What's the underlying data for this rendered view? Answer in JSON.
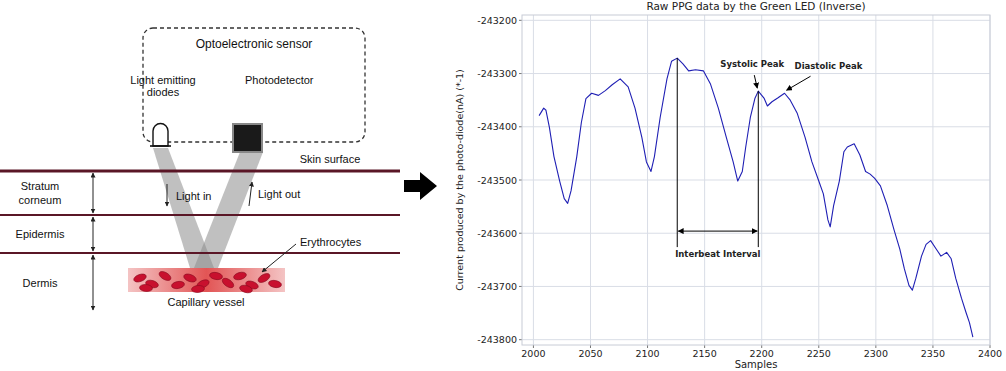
{
  "diagram": {
    "sensor": {
      "title": "Optoelectronic sensor",
      "emitter": [
        "Light emitting",
        "diodes"
      ],
      "detector": "Photodetector"
    },
    "skin_surface": "Skin surface",
    "layers": [
      {
        "lines": [
          "Stratum",
          "corneum"
        ]
      },
      {
        "lines": [
          "Epidermis"
        ]
      },
      {
        "lines": [
          "Dermis"
        ]
      }
    ],
    "light_in": "Light in",
    "light_out": "Light out",
    "cells": "Erythrocytes",
    "vessel": "Capillary vessel"
  },
  "chart_data": {
    "type": "line",
    "title": "Raw PPG data by the Green LED (Inverse)",
    "x_label": "Samples",
    "y_label": "Current produced by the photo-diode(nA) (*-1)",
    "xlim": [
      1990,
      2400
    ],
    "xticks": [
      2000,
      2050,
      2100,
      2150,
      2200,
      2250,
      2300,
      2350,
      2400
    ],
    "ylim": [
      -243810,
      -243190
    ],
    "yticks": [
      -243800,
      -243700,
      -243600,
      -243500,
      -243400,
      -243300,
      -243200
    ],
    "grid": true,
    "x": [
      2005,
      2009,
      2011,
      2014,
      2018,
      2023,
      2027,
      2030,
      2033,
      2038,
      2042,
      2046,
      2051,
      2057,
      2063,
      2069,
      2076,
      2083,
      2089,
      2095,
      2099,
      2103,
      2106,
      2111,
      2117,
      2121,
      2126,
      2131,
      2136,
      2142,
      2149,
      2155,
      2162,
      2169,
      2175,
      2179,
      2183,
      2186,
      2190,
      2194,
      2197,
      2202,
      2205,
      2209,
      2214,
      2220,
      2225,
      2231,
      2238,
      2244,
      2250,
      2254,
      2258,
      2260,
      2263,
      2268,
      2272,
      2275,
      2281,
      2286,
      2291,
      2295,
      2299,
      2304,
      2310,
      2316,
      2321,
      2325,
      2329,
      2332,
      2335,
      2340,
      2344,
      2348,
      2353,
      2357,
      2362,
      2366,
      2370,
      2375,
      2379,
      2382,
      2385
    ],
    "series": [
      {
        "color": "#1f1fb4",
        "values": [
          -243379,
          -243365,
          -243369,
          -243401,
          -243456,
          -243502,
          -243535,
          -243544,
          -243520,
          -243456,
          -243392,
          -243347,
          -243337,
          -243341,
          -243332,
          -243321,
          -243310,
          -243325,
          -243365,
          -243420,
          -243466,
          -243484,
          -243456,
          -243383,
          -243310,
          -243277,
          -243271,
          -243282,
          -243295,
          -243293,
          -243295,
          -243319,
          -243365,
          -243420,
          -243466,
          -243502,
          -243484,
          -243438,
          -243383,
          -243347,
          -243333,
          -243346,
          -243361,
          -243353,
          -243346,
          -243337,
          -243350,
          -243374,
          -243420,
          -243466,
          -243502,
          -243526,
          -243575,
          -243588,
          -243548,
          -243502,
          -243447,
          -243438,
          -243432,
          -243453,
          -243484,
          -243489,
          -243497,
          -243511,
          -243548,
          -243594,
          -243630,
          -243667,
          -243698,
          -243707,
          -243685,
          -243643,
          -243621,
          -243614,
          -243630,
          -243643,
          -243636,
          -243648,
          -243685,
          -243722,
          -243749,
          -243768,
          -243795
        ]
      }
    ],
    "annotations": [
      {
        "text": "Systolic Peak",
        "x": 2197,
        "y": -243333
      },
      {
        "text": "Diastolic Peak",
        "x": 2220,
        "y": -243337
      }
    ],
    "interbeat_interval": {
      "text": "Interbeat Interval",
      "start": 2126,
      "end": 2197,
      "y": -243596
    }
  }
}
